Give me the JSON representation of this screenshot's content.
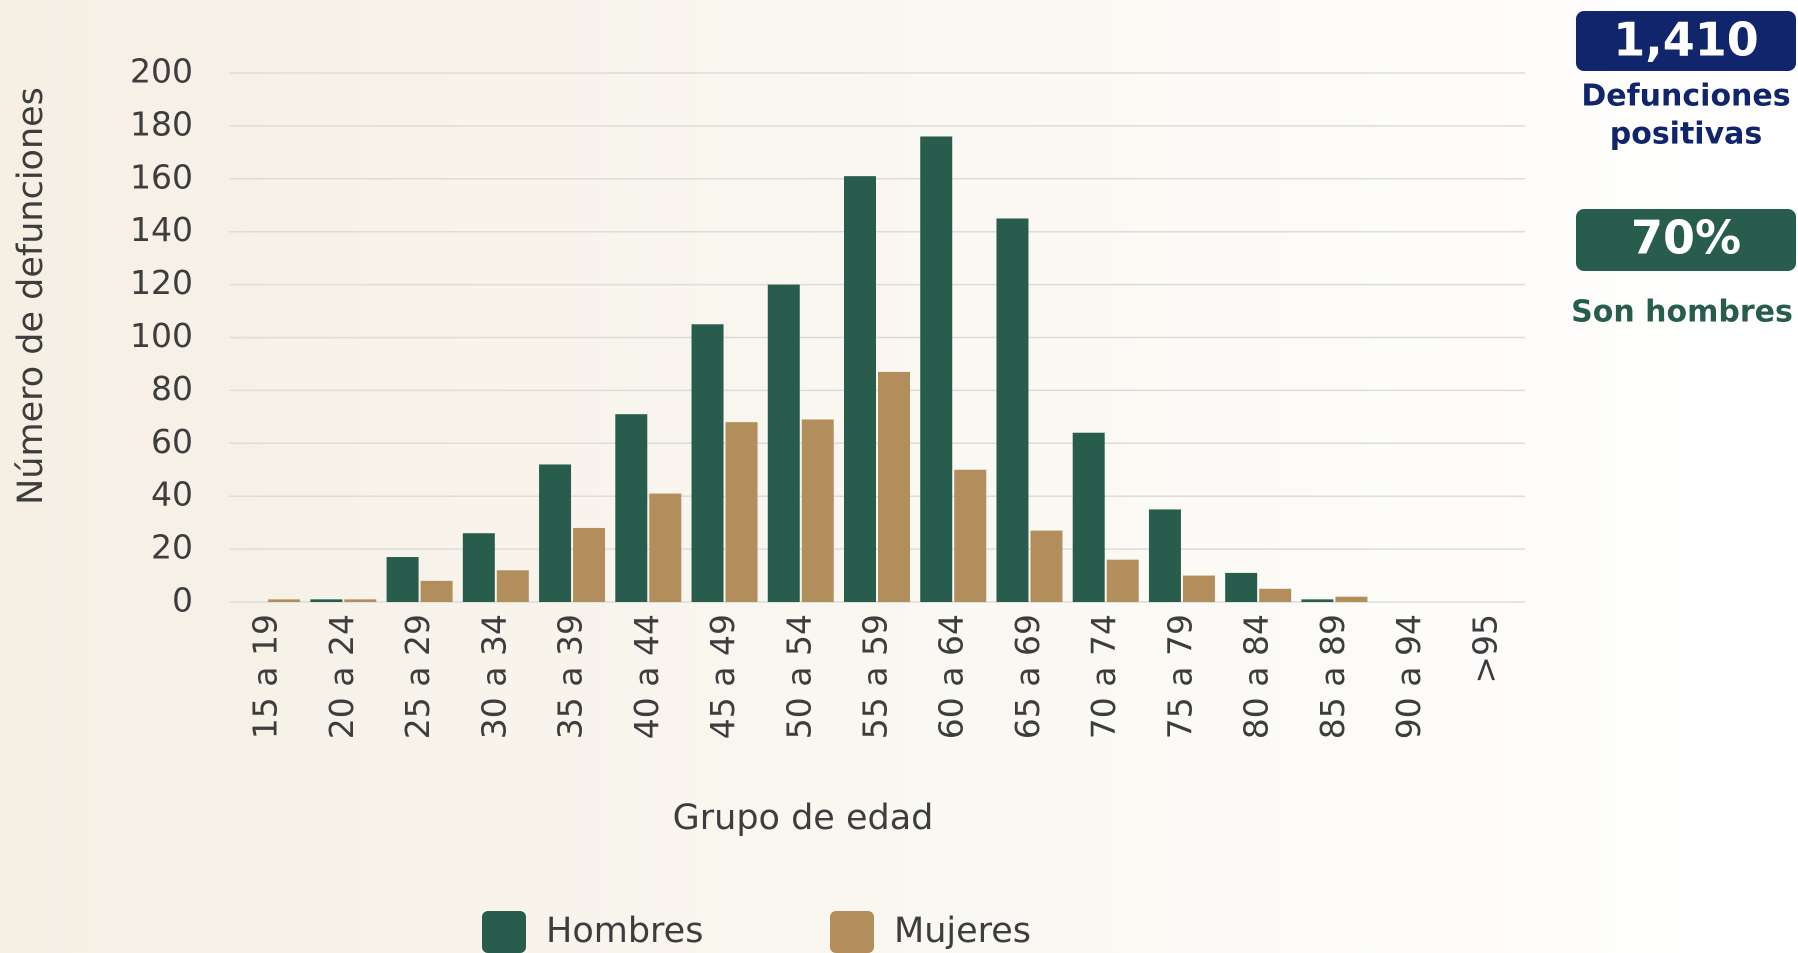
{
  "chart_data": {
    "type": "bar",
    "x_label": "Grupo de edad",
    "y_label": "Número de defunciones",
    "categories": [
      "15 a 19",
      "20 a 24",
      "25 a 29",
      "30 a 34",
      "35 a 39",
      "40 a 44",
      "45 a 49",
      "50 a 54",
      "55 a 59",
      "60 a 64",
      "65 a 69",
      "70 a 74",
      "75 a 79",
      "80 a 84",
      "85 a 89",
      "90 a 94",
      ">95"
    ],
    "series": [
      {
        "name": "Hombres",
        "color": "#285c4d",
        "values": [
          0,
          1,
          17,
          26,
          52,
          71,
          105,
          120,
          161,
          176,
          145,
          64,
          35,
          11,
          1,
          0,
          0
        ]
      },
      {
        "name": "Mujeres",
        "color": "#b38e5d",
        "values": [
          1,
          1,
          8,
          12,
          28,
          41,
          68,
          69,
          87,
          50,
          27,
          16,
          10,
          5,
          2,
          0,
          0
        ]
      }
    ],
    "ylim": [
      0,
      200
    ],
    "yticks": [
      0,
      20,
      40,
      60,
      80,
      100,
      120,
      140,
      160,
      180,
      200
    ],
    "grid": true,
    "legend": "bottom"
  },
  "summary": {
    "total": "1,410",
    "total_label_1": "Defunciones",
    "total_label_2": "positivas",
    "share": "70%",
    "share_label": "Son hombres"
  }
}
